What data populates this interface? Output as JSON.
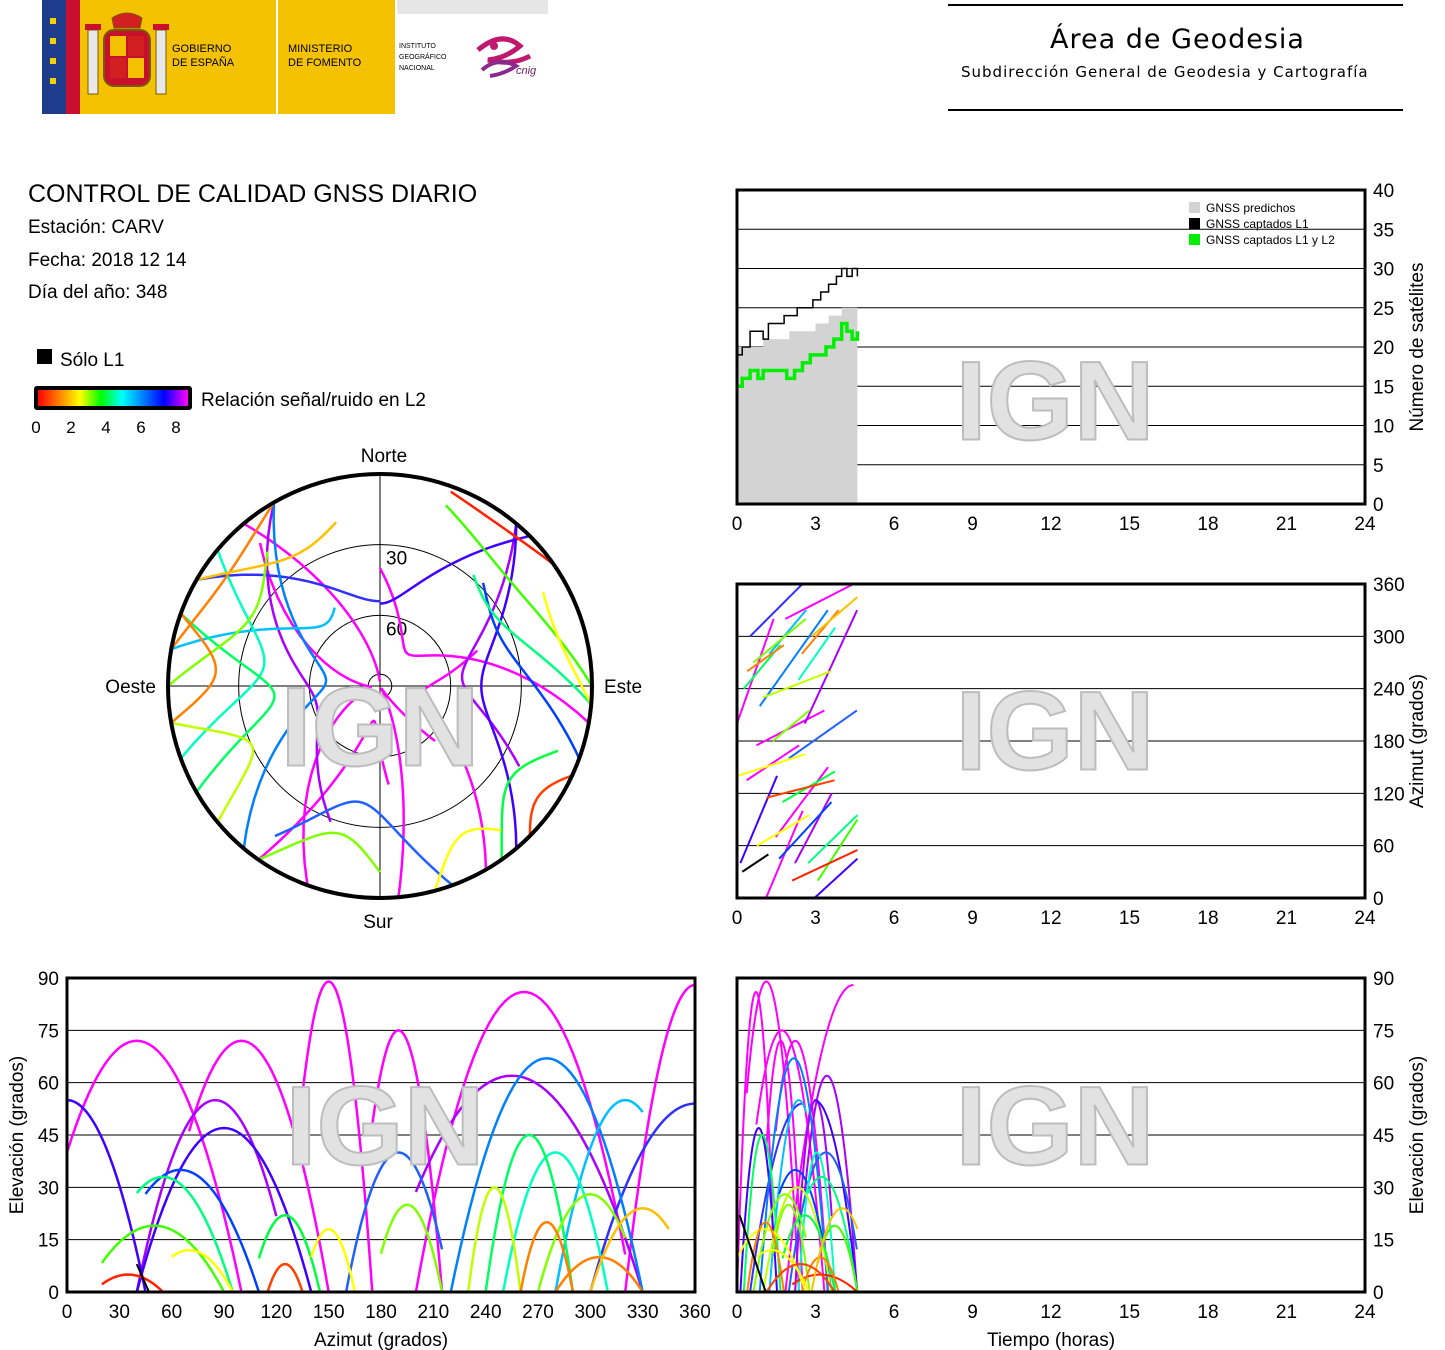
{
  "header": {
    "gov_text_1": "GOBIERNO",
    "gov_text_2": "DE ESPAÑA",
    "ministry_1": "MINISTERIO",
    "ministry_2": "DE FOMENTO",
    "ign_1": "INSTITUTO",
    "ign_2": "GEOGRÁFICO",
    "ign_3": "NACIONAL",
    "cnig": "cnig",
    "area_title": "Área de Geodesia",
    "area_subtitle": "Subdirección General de Geodesia y Cartografía"
  },
  "report": {
    "title": "CONTROL DE CALIDAD GNSS DIARIO",
    "station": "Estación: CARV",
    "date": "Fecha: 2018 12 14",
    "doy": "Día del año: 348",
    "legend_l1": "Sólo L1",
    "legend_snr": "Relación señal/ruido en L2",
    "snr_ticks": [
      "0",
      "2",
      "4",
      "6",
      "8"
    ]
  },
  "watermark": "IGN",
  "colors": {
    "predicted": "#d3d3d3",
    "captured_l1": "#000000",
    "captured_l1_l2": "#00ee00",
    "snr_scale": [
      "#ff0000",
      "#ff8000",
      "#ffff00",
      "#00ff00",
      "#00ffff",
      "#0080ff",
      "#0000ff",
      "#ff00ff"
    ]
  },
  "polar": {
    "north": "Norte",
    "south": "Sur",
    "east": "Este",
    "west": "Oeste",
    "ring_labels": [
      "30",
      "60"
    ]
  },
  "chart_data": [
    {
      "type": "line",
      "name": "satellites-per-time",
      "xlabel": "",
      "ylabel": "Número de satélites",
      "xlim": [
        0,
        24
      ],
      "ylim": [
        0,
        40
      ],
      "xticks": [
        "0",
        "3",
        "6",
        "9",
        "12",
        "15",
        "18",
        "21",
        "24"
      ],
      "yticks": [
        "0",
        "5",
        "10",
        "15",
        "20",
        "25",
        "30",
        "35",
        "40"
      ],
      "legend": [
        "GNSS predichos",
        "GNSS captados L1",
        "GNSS captados L1 y L2"
      ],
      "legend_position": "top-right",
      "series": [
        {
          "name": "GNSS predichos",
          "x": [
            0,
            0.5,
            1,
            1.5,
            2,
            2.5,
            3,
            3.5,
            4,
            4.5,
            4.6
          ],
          "y": [
            20,
            20,
            21,
            21,
            22,
            22,
            23,
            24,
            25,
            25,
            25
          ]
        },
        {
          "name": "GNSS captados L1",
          "x": [
            0,
            0.2,
            0.5,
            0.8,
            1.0,
            1.2,
            1.5,
            1.8,
            2.0,
            2.3,
            2.6,
            2.9,
            3.2,
            3.5,
            3.8,
            4.0,
            4.2,
            4.4,
            4.6
          ],
          "y": [
            19,
            20,
            22,
            22,
            21,
            23,
            23,
            24,
            24,
            25,
            25,
            26,
            27,
            28,
            29,
            30,
            29,
            30,
            29
          ]
        },
        {
          "name": "GNSS captados L1 y L2",
          "x": [
            0,
            0.2,
            0.5,
            0.8,
            1.0,
            1.3,
            1.6,
            1.9,
            2.2,
            2.5,
            2.8,
            3.1,
            3.4,
            3.7,
            4.0,
            4.2,
            4.4,
            4.6
          ],
          "y": [
            15,
            16,
            17,
            16,
            17,
            17,
            17,
            16,
            17,
            18,
            19,
            19,
            20,
            21,
            23,
            22,
            21,
            22
          ]
        }
      ]
    },
    {
      "type": "scatter",
      "name": "azimuth-per-time",
      "xlabel": "",
      "ylabel": "Azimut (grados)",
      "xlim": [
        0,
        24
      ],
      "ylim": [
        0,
        360
      ],
      "xticks": [
        "0",
        "3",
        "6",
        "9",
        "12",
        "15",
        "18",
        "21",
        "24"
      ],
      "yticks": [
        "0",
        "60",
        "120",
        "180",
        "240",
        "300",
        "360"
      ]
    },
    {
      "type": "scatter",
      "name": "elevation-per-azimuth",
      "xlabel": "Azimut (grados)",
      "ylabel": "Elevación (grados)",
      "xlim": [
        0,
        360
      ],
      "ylim": [
        0,
        90
      ],
      "xticks": [
        "0",
        "30",
        "60",
        "90",
        "120",
        "150",
        "180",
        "210",
        "240",
        "270",
        "300",
        "330",
        "360"
      ],
      "yticks": [
        "0",
        "15",
        "30",
        "45",
        "60",
        "75",
        "90"
      ]
    },
    {
      "type": "scatter",
      "name": "elevation-per-time",
      "xlabel": "Tiempo (horas)",
      "ylabel": "Elevación (grados)",
      "xlim": [
        0,
        24
      ],
      "ylim": [
        0,
        90
      ],
      "xticks": [
        "0",
        "3",
        "6",
        "9",
        "12",
        "15",
        "18",
        "21",
        "24"
      ],
      "yticks": [
        "0",
        "15",
        "30",
        "45",
        "60",
        "75",
        "90"
      ]
    },
    {
      "type": "scatter",
      "name": "skyplot",
      "polar": true,
      "rings_elevation": [
        0,
        30,
        60,
        85
      ]
    }
  ],
  "tracks": [
    {
      "az0": 200,
      "az1": 320,
      "peak_el": 86,
      "peak_az": 262,
      "color": "#ff00ff"
    },
    {
      "az0": 135,
      "az1": 175,
      "peak_el": 89,
      "peak_az": 150,
      "color": "#ff00ff"
    },
    {
      "az0": 175,
      "az1": 215,
      "peak_el": 75,
      "peak_az": 190,
      "color": "#ff00ff"
    },
    {
      "az0": 0,
      "az1": 100,
      "peak_el": 72,
      "peak_az": 40,
      "color": "#ff00ff"
    },
    {
      "az0": 70,
      "az1": 150,
      "peak_el": 72,
      "peak_az": 100,
      "color": "#ff00ff"
    },
    {
      "az0": 320,
      "az1": 360,
      "peak_el": 88,
      "peak_az": 360,
      "color": "#ff00ff"
    },
    {
      "az0": 40,
      "az1": 120,
      "peak_el": 55,
      "peak_az": 85,
      "color": "#aa00ff"
    },
    {
      "az0": 200,
      "az1": 330,
      "peak_el": 62,
      "peak_az": 255,
      "color": "#aa00ff"
    },
    {
      "az0": 0,
      "az1": 45,
      "peak_el": 55,
      "peak_az": 0,
      "color": "#4000ff"
    },
    {
      "az0": 40,
      "az1": 140,
      "peak_el": 47,
      "peak_az": 90,
      "color": "#4000ff"
    },
    {
      "az0": 300,
      "az1": 360,
      "peak_el": 54,
      "peak_az": 360,
      "color": "#3030ff"
    },
    {
      "az0": 220,
      "az1": 330,
      "peak_el": 67,
      "peak_az": 275,
      "color": "#0080ff"
    },
    {
      "az0": 280,
      "az1": 330,
      "peak_el": 55,
      "peak_az": 320,
      "color": "#00c0ff"
    },
    {
      "az0": 45,
      "az1": 110,
      "peak_el": 35,
      "peak_az": 65,
      "color": "#0040ff"
    },
    {
      "az0": 160,
      "az1": 215,
      "peak_el": 40,
      "peak_az": 190,
      "color": "#2060ff"
    },
    {
      "az0": 250,
      "az1": 310,
      "peak_el": 40,
      "peak_az": 280,
      "color": "#00ffc0"
    },
    {
      "az0": 40,
      "az1": 95,
      "peak_el": 33,
      "peak_az": 55,
      "color": "#00ff80"
    },
    {
      "az0": 20,
      "az1": 90,
      "peak_el": 19,
      "peak_az": 50,
      "color": "#40ff00"
    },
    {
      "az0": 240,
      "az1": 290,
      "peak_el": 45,
      "peak_az": 265,
      "color": "#00ff60"
    },
    {
      "az0": 270,
      "az1": 320,
      "peak_el": 28,
      "peak_az": 300,
      "color": "#80ff00"
    },
    {
      "az0": 230,
      "az1": 260,
      "peak_el": 30,
      "peak_az": 245,
      "color": "#c0ff00"
    },
    {
      "az0": 180,
      "az1": 215,
      "peak_el": 25,
      "peak_az": 195,
      "color": "#80ff00"
    },
    {
      "az0": 110,
      "az1": 145,
      "peak_el": 22,
      "peak_az": 125,
      "color": "#00ff40"
    },
    {
      "az0": 20,
      "az1": 55,
      "peak_el": 5,
      "peak_az": 35,
      "color": "#ff2000"
    },
    {
      "az0": 280,
      "az1": 330,
      "peak_el": 10,
      "peak_az": 305,
      "color": "#ff8000"
    },
    {
      "az0": 300,
      "az1": 345,
      "peak_el": 24,
      "peak_az": 330,
      "color": "#ffc000"
    },
    {
      "az0": 140,
      "az1": 165,
      "peak_el": 18,
      "peak_az": 150,
      "color": "#ffff00"
    },
    {
      "az0": 260,
      "az1": 290,
      "peak_el": 20,
      "peak_az": 275,
      "color": "#ff8000"
    },
    {
      "az0": 60,
      "az1": 95,
      "peak_el": 12,
      "peak_az": 70,
      "color": "#ffff00"
    },
    {
      "az0": 115,
      "az1": 135,
      "peak_el": 8,
      "peak_az": 125,
      "color": "#ff4000"
    }
  ]
}
